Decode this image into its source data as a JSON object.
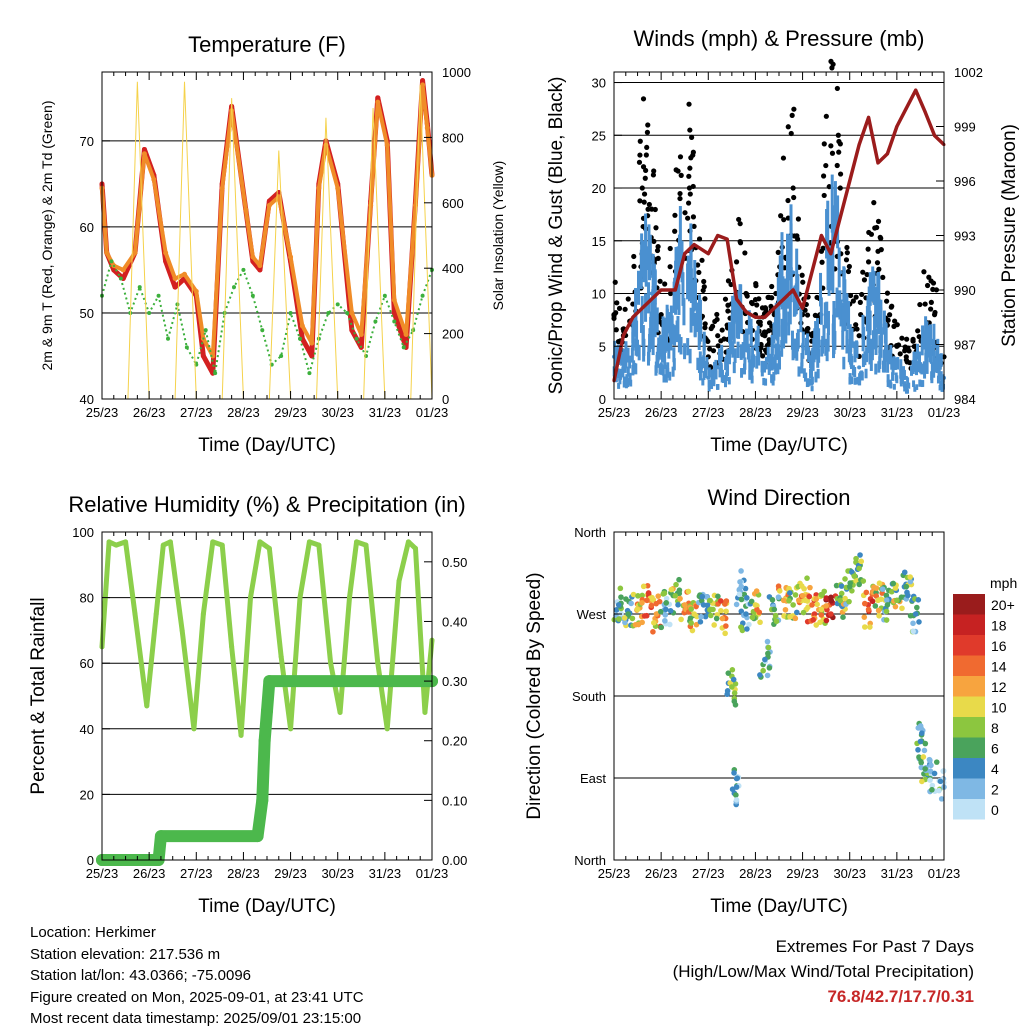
{
  "chart_data": [
    {
      "type": "line",
      "title": "Temperature (F)",
      "xlabel": "Time (Day/UTC)",
      "ylabel": "2m & 9m T (Red, Orange) & 2m Td (Green)",
      "y2label": "Solar Insolation (Yellow)",
      "x_ticks": [
        "25/23",
        "26/23",
        "27/23",
        "28/23",
        "29/23",
        "30/23",
        "31/23",
        "01/23"
      ],
      "ylim": [
        40,
        78
      ],
      "y_ticks": [
        "40",
        "50",
        "60",
        "70"
      ],
      "y2lim": [
        0,
        1000
      ],
      "y2_ticks": [
        "0",
        "200",
        "400",
        "600",
        "800",
        "1000"
      ],
      "grid": "horizontal",
      "series": [
        {
          "name": "2m T",
          "color": "#d32020",
          "x": [
            0,
            0.1,
            0.25,
            0.45,
            0.7,
            0.9,
            1.1,
            1.35,
            1.55,
            1.75,
            2.0,
            2.15,
            2.35,
            2.55,
            2.75,
            3.05,
            3.2,
            3.35,
            3.55,
            3.75,
            4.0,
            4.25,
            4.45,
            4.6,
            4.75,
            5.0,
            5.3,
            5.5,
            5.7,
            5.85,
            6.05,
            6.2,
            6.45,
            6.65,
            6.8,
            6.9,
            7.0
          ],
          "y": [
            65,
            57,
            55,
            54,
            57,
            69,
            66,
            56,
            53,
            54,
            52,
            45,
            43,
            65,
            74,
            62,
            56,
            55,
            63,
            64,
            56,
            47,
            45,
            65,
            70,
            65,
            48,
            46,
            63,
            75,
            70,
            50,
            46,
            63,
            77,
            72,
            66
          ]
        },
        {
          "name": "9m T",
          "color": "#f08c28",
          "x": [
            0,
            0.1,
            0.25,
            0.45,
            0.7,
            0.9,
            1.1,
            1.35,
            1.55,
            1.75,
            2.0,
            2.15,
            2.35,
            2.55,
            2.75,
            3.05,
            3.2,
            3.35,
            3.55,
            3.75,
            4.0,
            4.25,
            4.45,
            4.6,
            4.75,
            5.0,
            5.3,
            5.5,
            5.7,
            5.85,
            6.05,
            6.2,
            6.45,
            6.65,
            6.8,
            6.9,
            7.0
          ],
          "y": [
            64.5,
            57,
            55.5,
            55,
            57,
            68.5,
            65.5,
            57,
            54,
            54.5,
            52.5,
            47,
            45,
            64.5,
            73.5,
            62,
            56.5,
            55.5,
            62.5,
            63.5,
            56.5,
            48.5,
            46.5,
            64.5,
            69.5,
            64.5,
            50,
            47.5,
            62.5,
            74.5,
            69.5,
            51.5,
            47.5,
            62.5,
            76.5,
            71.5,
            66
          ]
        },
        {
          "name": "2m Td",
          "color": "#3cb03c",
          "x": [
            0,
            0.2,
            0.4,
            0.6,
            0.8,
            1.0,
            1.2,
            1.4,
            1.6,
            1.8,
            2.0,
            2.2,
            2.4,
            2.6,
            2.8,
            3.0,
            3.2,
            3.4,
            3.6,
            3.8,
            4.0,
            4.2,
            4.4,
            4.6,
            4.8,
            5.0,
            5.2,
            5.4,
            5.6,
            5.8,
            6.0,
            6.2,
            6.4,
            6.6,
            6.8,
            7.0
          ],
          "y": [
            52,
            56,
            54,
            50,
            53,
            50,
            52,
            47,
            51,
            46,
            44,
            48,
            43,
            50,
            53,
            55,
            52,
            48,
            44,
            45,
            50,
            47,
            43,
            47,
            50,
            51,
            50,
            47,
            45,
            49,
            52,
            49,
            46,
            48,
            52,
            55
          ]
        },
        {
          "name": "Solar Insolation",
          "color": "#f5d24b",
          "axis": "y2",
          "x": [
            0.55,
            0.75,
            1.0,
            1.55,
            1.75,
            2.0,
            2.55,
            2.75,
            3.0,
            3.55,
            3.75,
            4.0,
            4.55,
            4.75,
            5.0,
            5.55,
            5.75,
            6.0,
            6.55,
            6.75,
            7.0
          ],
          "y": [
            0,
            970,
            0,
            0,
            970,
            0,
            0,
            920,
            0,
            0,
            760,
            0,
            0,
            860,
            0,
            0,
            890,
            0,
            0,
            960,
            0
          ]
        }
      ]
    },
    {
      "type": "scatter",
      "title": "Winds (mph) & Pressure (mb)",
      "xlabel": "Time (Day/UTC)",
      "ylabel": "Sonic/Prop Wind & Gust (Blue, Black)",
      "y2label": "Station Pressure (Maroon)",
      "x_ticks": [
        "25/23",
        "26/23",
        "27/23",
        "28/23",
        "29/23",
        "30/23",
        "31/23",
        "01/23"
      ],
      "ylim": [
        0,
        31
      ],
      "y_ticks": [
        "0",
        "5",
        "10",
        "15",
        "20",
        "25",
        "30"
      ],
      "y2lim": [
        984,
        1002
      ],
      "y2_ticks": [
        "984",
        "987",
        "990",
        "993",
        "996",
        "999",
        "1002"
      ],
      "grid": "horizontal",
      "series": [
        {
          "name": "Gust",
          "color": "#000000",
          "x": [
            0,
            0.2,
            0.4,
            0.6,
            0.8,
            1.0,
            1.2,
            1.4,
            1.6,
            1.8,
            2.0,
            2.2,
            2.4,
            2.6,
            2.8,
            3.0,
            3.2,
            3.4,
            3.6,
            3.8,
            4.0,
            4.2,
            4.4,
            4.6,
            4.8,
            5.0,
            5.2,
            5.4,
            5.6,
            5.8,
            6.0,
            6.2,
            6.4,
            6.6,
            6.8,
            7.0
          ],
          "y": [
            8,
            6,
            9,
            20,
            18,
            8,
            10,
            19,
            20,
            12,
            4,
            6,
            7,
            13,
            10,
            8,
            6,
            8,
            17,
            20,
            8,
            6,
            14,
            24,
            20,
            9,
            6,
            13,
            14,
            7,
            5,
            4,
            5,
            9,
            8,
            4
          ]
        },
        {
          "name": "Wind",
          "color": "#4a90d0",
          "x": [
            0,
            0.2,
            0.4,
            0.6,
            0.8,
            1.0,
            1.2,
            1.4,
            1.6,
            1.8,
            2.0,
            2.2,
            2.4,
            2.6,
            2.8,
            3.0,
            3.2,
            3.4,
            3.6,
            3.8,
            4.0,
            4.2,
            4.4,
            4.6,
            4.8,
            5.0,
            5.2,
            5.4,
            5.6,
            5.8,
            6.0,
            6.2,
            6.4,
            6.6,
            6.8,
            7.0
          ],
          "y": [
            4,
            3,
            5,
            12,
            10,
            5,
            6,
            12,
            12,
            7,
            2,
            3,
            4,
            8,
            6,
            5,
            3,
            5,
            11,
            12,
            5,
            3,
            8,
            14,
            12,
            5,
            3,
            8,
            8,
            4,
            3,
            2,
            3,
            5,
            5,
            2
          ]
        },
        {
          "name": "Station Pressure",
          "color": "#9b1c1c",
          "axis": "y2",
          "x": [
            0,
            0.2,
            0.4,
            0.6,
            1.0,
            1.3,
            1.5,
            1.7,
            2.0,
            2.2,
            2.4,
            2.6,
            2.8,
            3.0,
            3.2,
            3.4,
            3.6,
            3.8,
            4.0,
            4.2,
            4.4,
            4.6,
            4.8,
            5.0,
            5.2,
            5.4,
            5.6,
            5.8,
            6.0,
            6.2,
            6.4,
            6.6,
            6.8,
            7.0
          ],
          "y": [
            985,
            987.5,
            988.5,
            989,
            990,
            990,
            992,
            992.5,
            992,
            993,
            992.8,
            989.5,
            988.8,
            988.5,
            988.5,
            989,
            989.5,
            990,
            989,
            991,
            993,
            992,
            994,
            996,
            998,
            999.5,
            997,
            997.5,
            999,
            1000,
            1001,
            999.8,
            998.5,
            998
          ]
        }
      ]
    },
    {
      "type": "line",
      "title": "Relative Humidity (%) & Precipitation (in)",
      "xlabel": "Time (Day/UTC)",
      "ylabel": "Percent & Total Rainfall",
      "x_ticks": [
        "25/23",
        "26/23",
        "27/23",
        "28/23",
        "29/23",
        "30/23",
        "31/23",
        "01/23"
      ],
      "ylim": [
        0,
        100
      ],
      "y_ticks": [
        "0",
        "20",
        "40",
        "60",
        "80",
        "100"
      ],
      "y2lim": [
        0,
        0.55
      ],
      "y2_ticks": [
        "0.00",
        "0.10",
        "0.20",
        "0.30",
        "0.40",
        "0.50"
      ],
      "grid": "horizontal",
      "series": [
        {
          "name": "Relative Humidity",
          "color": "#8ccf4b",
          "x": [
            0,
            0.15,
            0.3,
            0.5,
            0.7,
            0.95,
            1.15,
            1.3,
            1.45,
            1.7,
            1.95,
            2.15,
            2.35,
            2.55,
            2.75,
            2.95,
            3.15,
            3.35,
            3.55,
            3.8,
            4.0,
            4.2,
            4.4,
            4.6,
            4.85,
            5.05,
            5.25,
            5.4,
            5.6,
            5.85,
            6.05,
            6.3,
            6.5,
            6.65,
            6.85,
            7.0
          ],
          "y": [
            65,
            97,
            96,
            97,
            75,
            47,
            75,
            96,
            97,
            70,
            40,
            75,
            97,
            96,
            65,
            38,
            80,
            97,
            95,
            62,
            40,
            80,
            97,
            96,
            60,
            45,
            80,
            97,
            96,
            60,
            40,
            85,
            97,
            95,
            45,
            67
          ]
        },
        {
          "name": "Total Rainfall",
          "color": "#4cb84c",
          "axis": "y2",
          "x": [
            0,
            1.2,
            1.25,
            3.3,
            3.4,
            3.45,
            3.5,
            3.55,
            7.0
          ],
          "y": [
            0,
            0,
            0.04,
            0.04,
            0.1,
            0.2,
            0.25,
            0.3,
            0.3
          ]
        }
      ]
    },
    {
      "type": "scatter",
      "title": "Wind Direction",
      "xlabel": "Time (Day/UTC)",
      "ylabel": "Direction (Colored By Speed)",
      "x_ticks": [
        "25/23",
        "26/23",
        "27/23",
        "28/23",
        "29/23",
        "30/23",
        "31/23",
        "01/23"
      ],
      "y_ticks": [
        "North",
        "East",
        "South",
        "West",
        "North"
      ],
      "ylim": [
        0,
        360
      ],
      "grid": "horizontal",
      "legend": {
        "title": "mph",
        "labels": [
          "20+",
          "18",
          "16",
          "14",
          "12",
          "10",
          "8",
          "6",
          "4",
          "2",
          "0"
        ],
        "colors": [
          "#9a1c1c",
          "#c62222",
          "#e03a2b",
          "#f06a30",
          "#f7a43f",
          "#e8da4a",
          "#8cc63f",
          "#4aa35c",
          "#3c87c2",
          "#7fb8e4",
          "#bfe2f6"
        ],
        "placement": "right"
      },
      "series": [
        {
          "name": "Direction",
          "x": [
            0.1,
            0.3,
            0.5,
            0.7,
            0.9,
            1.1,
            1.3,
            1.5,
            1.7,
            1.9,
            2.1,
            2.3,
            2.5,
            2.6,
            2.7,
            2.8,
            3.0,
            3.2,
            3.4,
            3.6,
            3.8,
            4.0,
            4.2,
            4.4,
            4.6,
            4.8,
            5.0,
            5.2,
            5.4,
            5.6,
            5.8,
            6.0,
            6.2,
            6.4,
            6.5,
            6.6,
            6.8,
            7.0
          ],
          "y": [
            280,
            270,
            275,
            285,
            270,
            275,
            290,
            280,
            270,
            280,
            275,
            265,
            190,
            80,
            300,
            270,
            280,
            220,
            275,
            285,
            280,
            290,
            280,
            275,
            270,
            285,
            300,
            320,
            275,
            285,
            280,
            285,
            300,
            270,
            130,
            100,
            95,
            80
          ],
          "speed": [
            4,
            6,
            10,
            14,
            12,
            4,
            8,
            12,
            10,
            4,
            8,
            12,
            8,
            3,
            2,
            4,
            10,
            4,
            6,
            12,
            8,
            12,
            14,
            10,
            16,
            8,
            6,
            8,
            14,
            10,
            6,
            8,
            6,
            4,
            4,
            6,
            4,
            2
          ]
        }
      ]
    }
  ],
  "info": {
    "location": "Location: Herkimer",
    "elevation": "Station elevation: 217.536 m",
    "latlon": "Station lat/lon: 43.0366; -75.0096",
    "created": "Figure created on Mon, 2025-09-01, at 23:41 UTC",
    "recent": "Most recent data timestamp: 2025/09/01 23:15:00"
  },
  "extremes": {
    "title": "Extremes For Past 7 Days",
    "subtitle": "(High/Low/Max Wind/Total Precipitation)",
    "values": "76.8/42.7/17.7/0.31"
  }
}
